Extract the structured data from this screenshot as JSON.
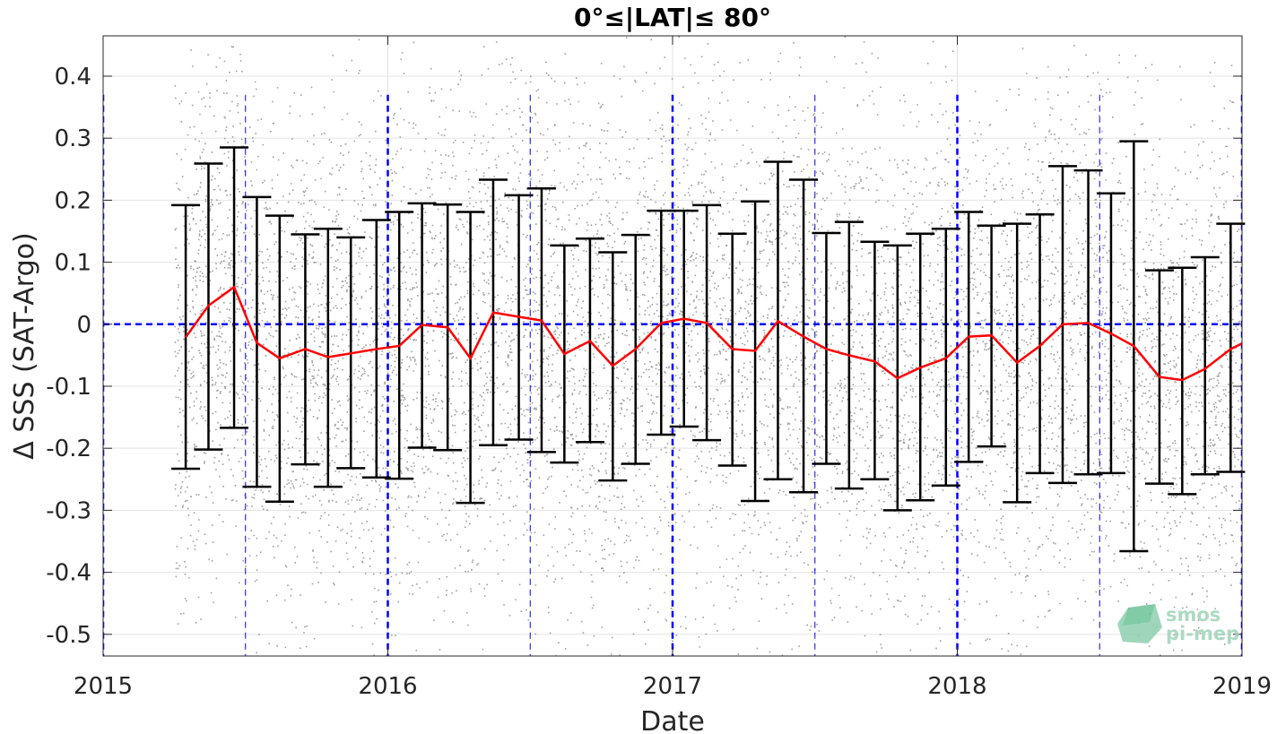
{
  "chart_data": {
    "type": "scatter",
    "title": "0°≤|LAT|≤ 80°",
    "xlabel": "Date",
    "ylabel": "Δ SSS (SAT-Argo)",
    "xlim": [
      2015.0,
      2019.0
    ],
    "ylim": [
      -0.535,
      0.465
    ],
    "x_ticks": [
      {
        "value": 2015,
        "label": "2015"
      },
      {
        "value": 2016,
        "label": "2016"
      },
      {
        "value": 2017,
        "label": "2017"
      },
      {
        "value": 2018,
        "label": "2018"
      },
      {
        "value": 2019,
        "label": "2019"
      }
    ],
    "y_ticks": [
      {
        "value": 0.4,
        "label": "0.4"
      },
      {
        "value": 0.3,
        "label": "0.3"
      },
      {
        "value": 0.2,
        "label": "0.2"
      },
      {
        "value": 0.1,
        "label": "0.1"
      },
      {
        "value": 0.0,
        "label": "0"
      },
      {
        "value": -0.1,
        "label": "-0.1"
      },
      {
        "value": -0.2,
        "label": "-0.2"
      },
      {
        "value": -0.3,
        "label": "-0.3"
      },
      {
        "value": -0.4,
        "label": "-0.4"
      },
      {
        "value": -0.5,
        "label": "-0.5"
      }
    ],
    "grid": true,
    "scatter": {
      "color": "#808080",
      "x_range": [
        2015.25,
        2019.0
      ],
      "description": "dense grey point cloud of individual SAT-Argo differences spanning the full visible y-range"
    },
    "monthly_mean": {
      "color": "#ff0000",
      "x": [
        2015.29,
        2015.37,
        2015.46,
        2015.54,
        2015.62,
        2015.71,
        2015.79,
        2015.87,
        2015.96,
        2016.04,
        2016.12,
        2016.21,
        2016.29,
        2016.37,
        2016.46,
        2016.54,
        2016.62,
        2016.71,
        2016.79,
        2016.87,
        2016.96,
        2017.04,
        2017.12,
        2017.21,
        2017.29,
        2017.37,
        2017.46,
        2017.54,
        2017.62,
        2017.71,
        2017.79,
        2017.87,
        2017.96,
        2018.04,
        2018.12,
        2018.21,
        2018.29,
        2018.37,
        2018.46,
        2018.54,
        2018.62,
        2018.71,
        2018.79,
        2018.87,
        2018.96,
        2019.0
      ],
      "y": [
        -0.021,
        0.03,
        0.06,
        -0.03,
        -0.055,
        -0.04,
        -0.053,
        -0.047,
        -0.04,
        -0.035,
        -0.001,
        -0.005,
        -0.055,
        0.019,
        0.012,
        0.006,
        -0.048,
        -0.027,
        -0.067,
        -0.04,
        0.002,
        0.009,
        0.002,
        -0.04,
        -0.043,
        0.005,
        -0.02,
        -0.04,
        -0.05,
        -0.06,
        -0.087,
        -0.07,
        -0.055,
        -0.02,
        -0.018,
        -0.062,
        -0.035,
        0.0,
        0.002,
        -0.015,
        -0.035,
        -0.085,
        -0.09,
        -0.072,
        -0.04,
        -0.031
      ]
    },
    "error_bars": {
      "color": "#000000",
      "x": [
        2015.29,
        2015.37,
        2015.46,
        2015.54,
        2015.62,
        2015.71,
        2015.79,
        2015.87,
        2015.96,
        2016.04,
        2016.12,
        2016.21,
        2016.29,
        2016.37,
        2016.46,
        2016.54,
        2016.62,
        2016.71,
        2016.79,
        2016.87,
        2016.96,
        2017.04,
        2017.12,
        2017.21,
        2017.29,
        2017.37,
        2017.46,
        2017.54,
        2017.62,
        2017.71,
        2017.79,
        2017.87,
        2017.96,
        2018.04,
        2018.12,
        2018.21,
        2018.29,
        2018.37,
        2018.46,
        2018.54,
        2018.62,
        2018.71,
        2018.79,
        2018.87,
        2018.96
      ],
      "upper": [
        0.192,
        0.259,
        0.285,
        0.205,
        0.175,
        0.145,
        0.154,
        0.14,
        0.168,
        0.181,
        0.195,
        0.193,
        0.181,
        0.233,
        0.208,
        0.219,
        0.127,
        0.138,
        0.116,
        0.144,
        0.183,
        0.183,
        0.192,
        0.146,
        0.198,
        0.262,
        0.233,
        0.147,
        0.165,
        0.133,
        0.127,
        0.146,
        0.154,
        0.181,
        0.159,
        0.162,
        0.177,
        0.255,
        0.248,
        0.211,
        0.295,
        0.087,
        0.091,
        0.108,
        0.162
      ],
      "lower": [
        -0.233,
        -0.202,
        -0.167,
        -0.262,
        -0.286,
        -0.226,
        -0.262,
        -0.232,
        -0.247,
        -0.249,
        -0.199,
        -0.203,
        -0.288,
        -0.195,
        -0.186,
        -0.206,
        -0.223,
        -0.19,
        -0.252,
        -0.225,
        -0.178,
        -0.165,
        -0.187,
        -0.228,
        -0.285,
        -0.25,
        -0.271,
        -0.225,
        -0.265,
        -0.25,
        -0.3,
        -0.284,
        -0.26,
        -0.222,
        -0.197,
        -0.287,
        -0.24,
        -0.256,
        -0.242,
        -0.24,
        -0.366,
        -0.257,
        -0.274,
        -0.242,
        -0.238
      ]
    },
    "reference_lines": {
      "color": "#0000ff",
      "horizontal_y": 0,
      "vertical_major": [
        2015.0,
        2016.0,
        2017.0,
        2018.0,
        2019.0
      ],
      "vertical_minor": [
        2015.5,
        2016.5,
        2017.5,
        2018.5
      ]
    },
    "watermark": {
      "line1": "smos",
      "line2": "pi-mep",
      "color": "#6cc397"
    }
  }
}
